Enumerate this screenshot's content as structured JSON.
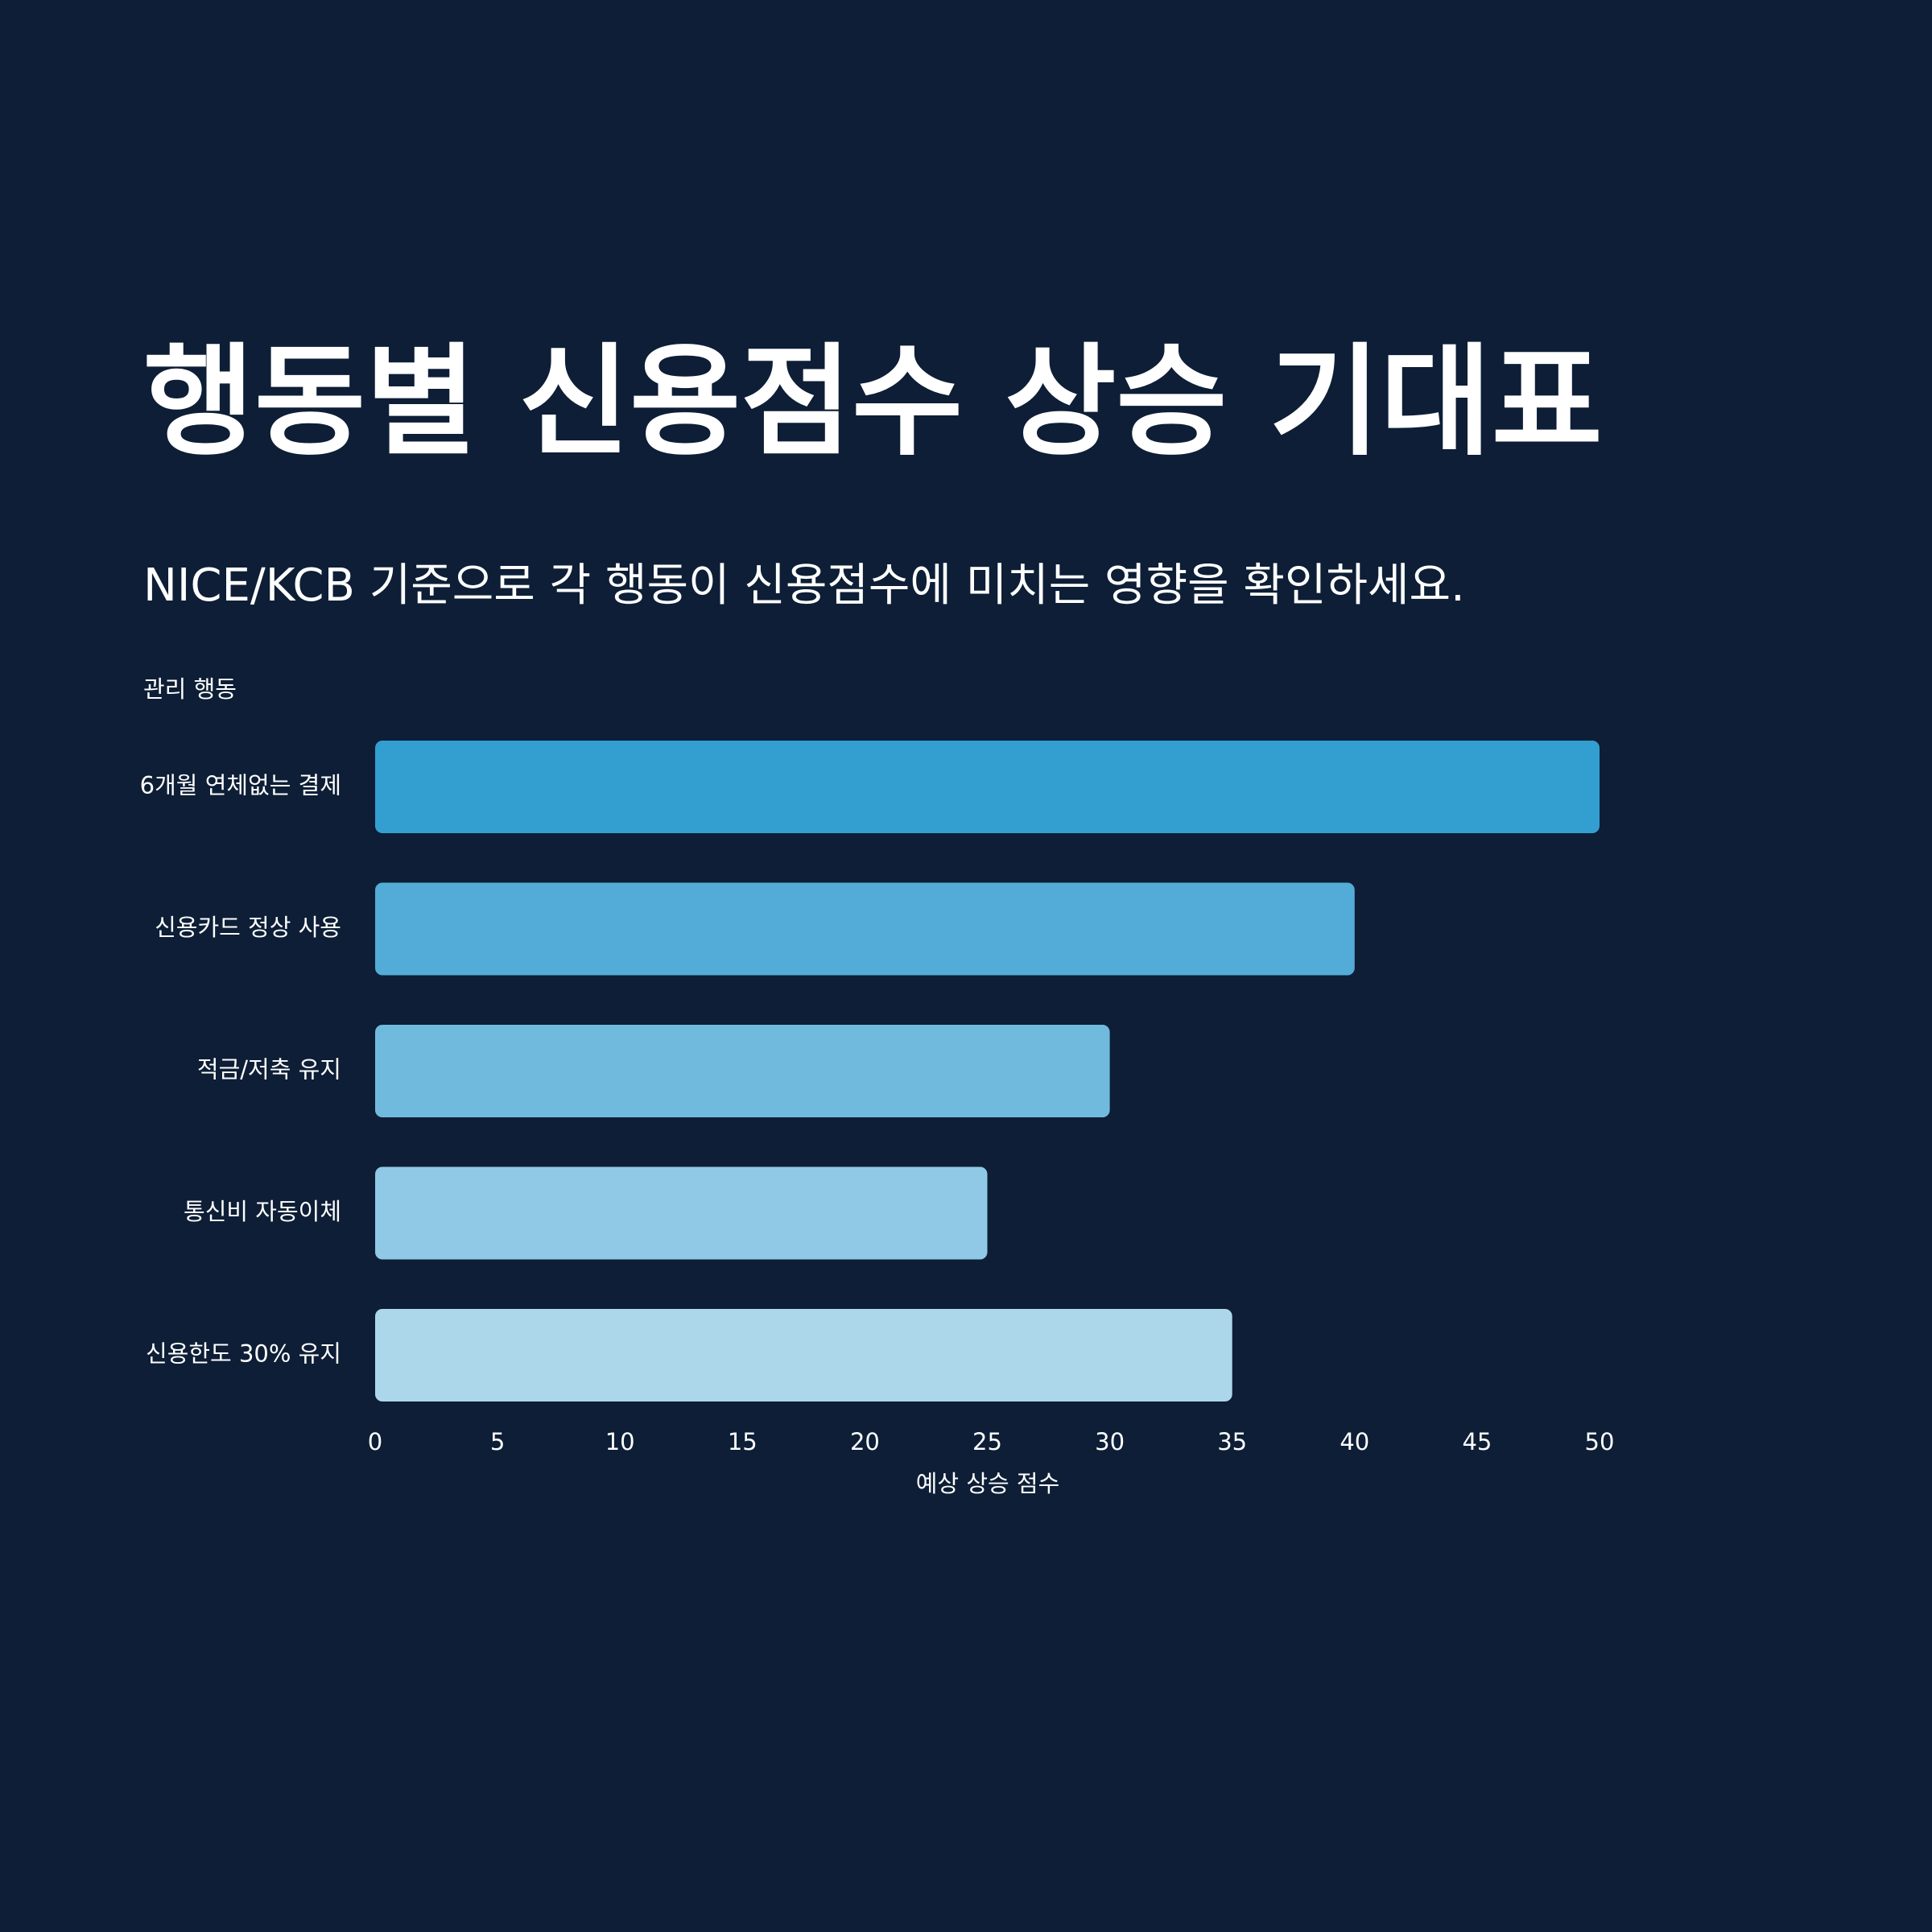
{
  "title": "행동별 신용점수 상승 기대표",
  "subtitle": "NICE/KCB 기준으로 각 행동이 신용점수에 미치는 영향을 확인하세요.",
  "chart_data": {
    "type": "bar",
    "orientation": "horizontal",
    "categories": [
      "6개월 연체없는 결제",
      "신용카드 정상 사용",
      "적금/저축 유지",
      "통신비 자동이체",
      "신용한도 30% 유지"
    ],
    "values": [
      50,
      40,
      30,
      25,
      35
    ],
    "colors": [
      "#339fd0",
      "#52acd7",
      "#70badd",
      "#8fc9e6",
      "#acd7eb"
    ],
    "xlabel": "예상 상승 점수",
    "ylabel": "관리 행동",
    "xlim": [
      0,
      50
    ],
    "xticks": [
      0,
      5,
      10,
      15,
      20,
      25,
      30,
      35,
      40,
      45,
      50
    ],
    "grid": false,
    "legend": "none"
  }
}
